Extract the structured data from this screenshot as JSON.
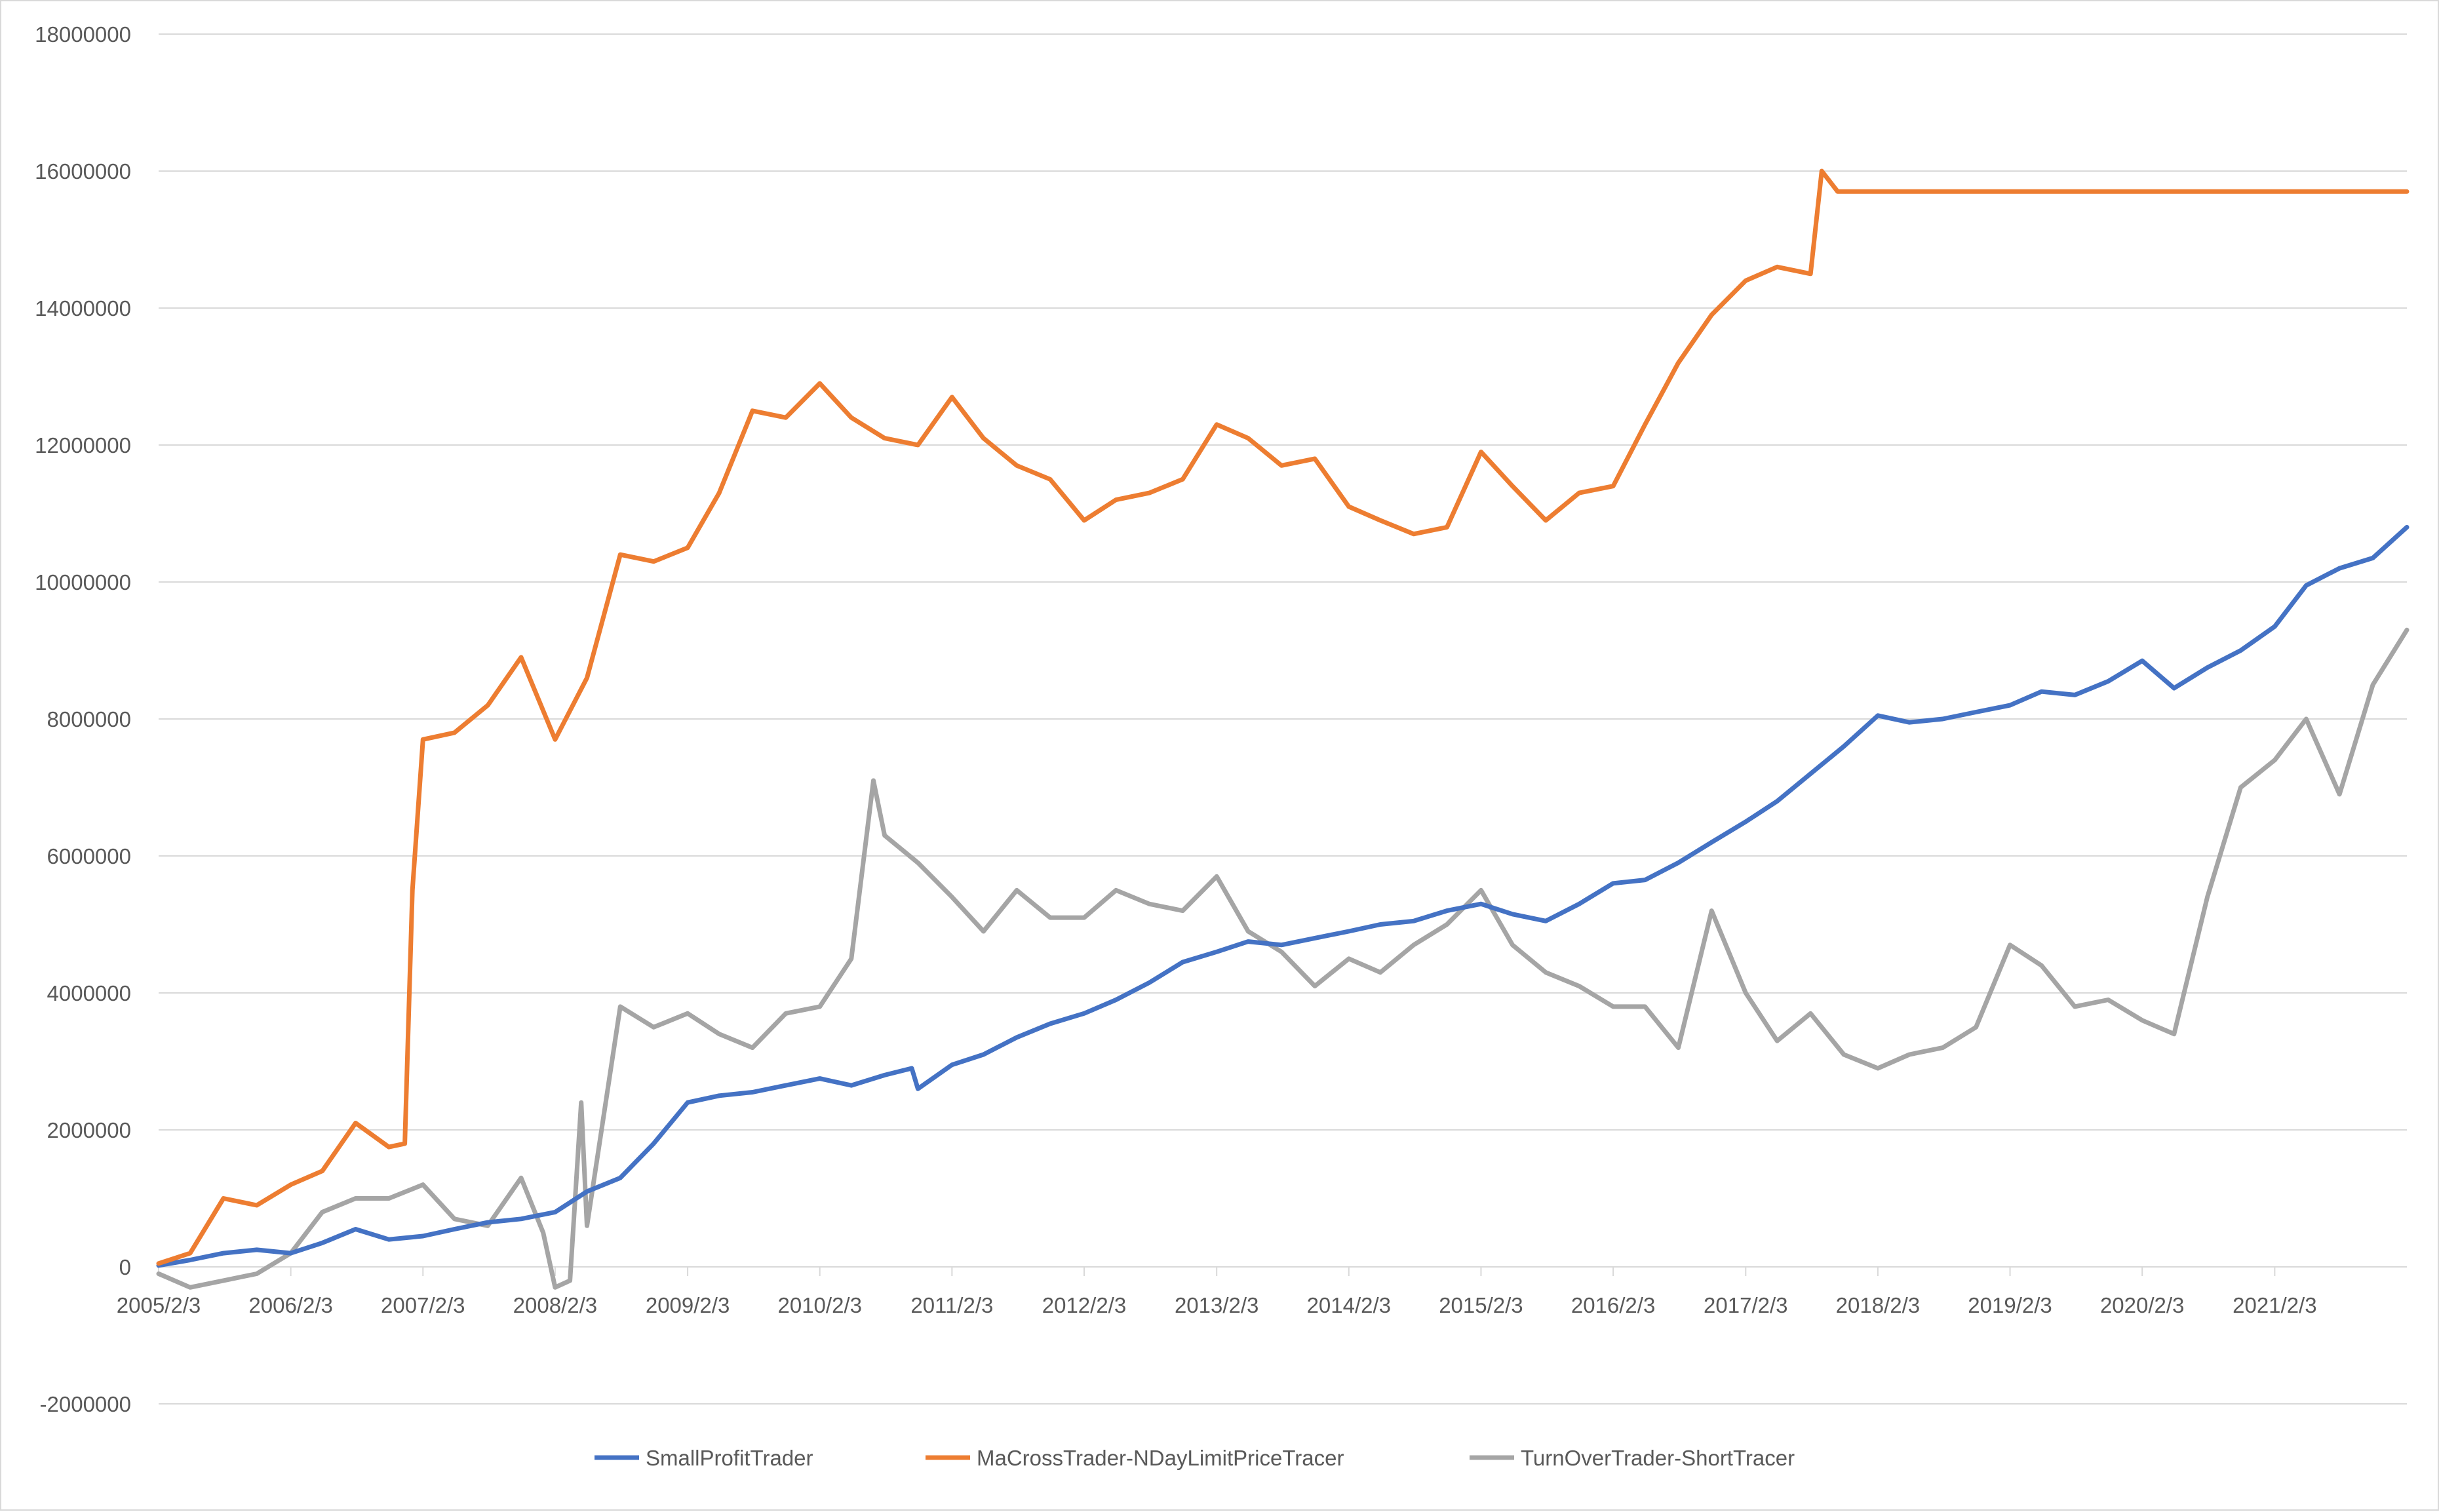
{
  "chart_data": {
    "type": "line",
    "title": "",
    "xlabel": "",
    "ylabel": "",
    "ylim": [
      -2000000,
      18000000
    ],
    "y_ticks": [
      "18000000",
      "16000000",
      "14000000",
      "12000000",
      "10000000",
      "8000000",
      "6000000",
      "4000000",
      "2000000",
      "0",
      "-2000000"
    ],
    "x_ticks": [
      "2005/2/3",
      "2006/2/3",
      "2007/2/3",
      "2008/2/3",
      "2009/2/3",
      "2010/2/3",
      "2011/2/3",
      "2012/2/3",
      "2013/2/3",
      "2014/2/3",
      "2015/2/3",
      "2016/2/3",
      "2017/2/3",
      "2018/2/3",
      "2019/2/3",
      "2020/2/3",
      "2021/2/3"
    ],
    "xlim": [
      "2005/2/3",
      "2022/2/3"
    ],
    "grid": "horizontal",
    "legend": "bottom",
    "series": [
      {
        "name": "SmallProfitTrader",
        "color": "#4472c4",
        "x": [
          "2005/2/3",
          "2005/5/1",
          "2005/8/1",
          "2005/11/1",
          "2006/2/3",
          "2006/5/1",
          "2006/8/1",
          "2006/11/1",
          "2007/2/3",
          "2007/5/1",
          "2007/8/1",
          "2007/11/1",
          "2008/2/3",
          "2008/5/1",
          "2008/8/1",
          "2008/11/1",
          "2009/2/3",
          "2009/5/1",
          "2009/8/1",
          "2009/11/1",
          "2010/2/3",
          "2010/5/1",
          "2010/8/1",
          "2010/10/15",
          "2010/11/1",
          "2011/2/3",
          "2011/5/1",
          "2011/8/1",
          "2011/11/1",
          "2012/2/3",
          "2012/5/1",
          "2012/8/1",
          "2012/11/1",
          "2013/2/3",
          "2013/5/1",
          "2013/8/1",
          "2013/11/1",
          "2014/2/3",
          "2014/5/1",
          "2014/8/1",
          "2014/11/1",
          "2015/2/3",
          "2015/5/1",
          "2015/8/1",
          "2015/11/1",
          "2016/2/3",
          "2016/5/1",
          "2016/8/1",
          "2016/11/1",
          "2017/2/3",
          "2017/5/1",
          "2017/8/1",
          "2017/11/1",
          "2018/2/3",
          "2018/5/1",
          "2018/8/1",
          "2018/11/1",
          "2019/2/3",
          "2019/5/1",
          "2019/8/1",
          "2019/11/1",
          "2020/2/3",
          "2020/5/1",
          "2020/8/1",
          "2020/11/1",
          "2021/2/3",
          "2021/5/1",
          "2021/8/1",
          "2021/11/1",
          "2022/2/3"
        ],
        "values": [
          20000,
          100000,
          200000,
          250000,
          200000,
          350000,
          550000,
          400000,
          450000,
          550000,
          650000,
          700000,
          800000,
          1100000,
          1300000,
          1800000,
          2400000,
          2500000,
          2550000,
          2650000,
          2750000,
          2650000,
          2800000,
          2900000,
          2600000,
          2950000,
          3100000,
          3350000,
          3550000,
          3700000,
          3900000,
          4150000,
          4450000,
          4600000,
          4750000,
          4700000,
          4800000,
          4900000,
          5000000,
          5050000,
          5200000,
          5300000,
          5150000,
          5050000,
          5300000,
          5600000,
          5650000,
          5900000,
          6200000,
          6500000,
          6800000,
          7200000,
          7600000,
          8050000,
          7950000,
          8000000,
          8100000,
          8200000,
          8400000,
          8350000,
          8550000,
          8850000,
          8450000,
          8750000,
          9000000,
          9350000,
          9950000,
          10200000,
          10350000,
          10800000
        ]
      },
      {
        "name": "MaCrossTrader-NDayLimitPriceTracer",
        "color": "#ed7d31",
        "x": [
          "2005/2/3",
          "2005/5/1",
          "2005/8/1",
          "2005/11/1",
          "2006/2/3",
          "2006/5/1",
          "2006/8/1",
          "2006/11/1",
          "2006/12/15",
          "2007/1/5",
          "2007/2/3",
          "2007/5/1",
          "2007/8/1",
          "2007/11/1",
          "2008/2/3",
          "2008/5/1",
          "2008/8/1",
          "2008/11/1",
          "2009/2/3",
          "2009/5/1",
          "2009/8/1",
          "2009/11/1",
          "2010/2/3",
          "2010/5/1",
          "2010/8/1",
          "2010/11/1",
          "2011/2/3",
          "2011/5/1",
          "2011/8/1",
          "2011/11/1",
          "2012/2/3",
          "2012/5/1",
          "2012/8/1",
          "2012/11/1",
          "2013/2/3",
          "2013/5/1",
          "2013/8/1",
          "2013/11/1",
          "2014/2/3",
          "2014/5/1",
          "2014/8/1",
          "2014/11/1",
          "2015/2/3",
          "2015/5/1",
          "2015/8/1",
          "2015/11/1",
          "2016/2/3",
          "2016/5/1",
          "2016/8/1",
          "2016/11/1",
          "2017/2/3",
          "2017/5/1",
          "2017/8/1",
          "2017/9/1",
          "2017/10/15",
          "2018/2/3",
          "2019/2/3",
          "2020/2/3",
          "2021/2/3",
          "2022/2/3"
        ],
        "values": [
          50000,
          200000,
          1000000,
          900000,
          1200000,
          1400000,
          2100000,
          1750000,
          1800000,
          5500000,
          7700000,
          7800000,
          8200000,
          8900000,
          7700000,
          8600000,
          10400000,
          10300000,
          10500000,
          11300000,
          12500000,
          12400000,
          12900000,
          12400000,
          12100000,
          12000000,
          12700000,
          12100000,
          11700000,
          11500000,
          10900000,
          11200000,
          11300000,
          11500000,
          12300000,
          12100000,
          11700000,
          11800000,
          11100000,
          10900000,
          10700000,
          10800000,
          11900000,
          11400000,
          10900000,
          11300000,
          11400000,
          12300000,
          13200000,
          13900000,
          14400000,
          14600000,
          14500000,
          16000000,
          15700000,
          15700000,
          15700000,
          15700000,
          15700000,
          15700000
        ]
      },
      {
        "name": "TurnOverTrader-ShortTracer",
        "color": "#a5a5a5",
        "x": [
          "2005/2/3",
          "2005/5/1",
          "2005/8/1",
          "2005/11/1",
          "2006/2/3",
          "2006/5/1",
          "2006/8/1",
          "2006/11/1",
          "2007/2/3",
          "2007/5/1",
          "2007/8/1",
          "2007/11/1",
          "2008/1/1",
          "2008/2/3",
          "2008/3/15",
          "2008/4/15",
          "2008/5/1",
          "2008/8/1",
          "2008/11/1",
          "2009/2/3",
          "2009/5/1",
          "2009/8/1",
          "2009/11/1",
          "2010/2/3",
          "2010/5/1",
          "2010/7/1",
          "2010/8/1",
          "2010/11/1",
          "2011/2/3",
          "2011/5/1",
          "2011/8/1",
          "2011/11/1",
          "2012/2/3",
          "2012/5/1",
          "2012/8/1",
          "2012/11/1",
          "2013/2/3",
          "2013/5/1",
          "2013/8/1",
          "2013/11/1",
          "2014/2/3",
          "2014/5/1",
          "2014/8/1",
          "2014/11/1",
          "2015/2/3",
          "2015/5/1",
          "2015/8/1",
          "2015/11/1",
          "2016/2/3",
          "2016/5/1",
          "2016/8/1",
          "2016/11/1",
          "2017/2/3",
          "2017/5/1",
          "2017/8/1",
          "2017/11/1",
          "2018/2/3",
          "2018/5/1",
          "2018/8/1",
          "2018/11/1",
          "2019/2/3",
          "2019/5/1",
          "2019/8/1",
          "2019/11/1",
          "2020/2/3",
          "2020/5/1",
          "2020/8/1",
          "2020/11/1",
          "2021/2/3",
          "2021/5/1",
          "2021/8/1",
          "2021/11/1",
          "2022/2/3"
        ],
        "values": [
          -100000,
          -300000,
          -200000,
          -100000,
          200000,
          800000,
          1000000,
          1000000,
          1200000,
          700000,
          600000,
          1300000,
          500000,
          -300000,
          -200000,
          2400000,
          600000,
          3800000,
          3500000,
          3700000,
          3400000,
          3200000,
          3700000,
          3800000,
          4500000,
          7100000,
          6300000,
          5900000,
          5400000,
          4900000,
          5500000,
          5100000,
          5100000,
          5500000,
          5300000,
          5200000,
          5700000,
          4900000,
          4600000,
          4100000,
          4500000,
          4300000,
          4700000,
          5000000,
          5500000,
          4700000,
          4300000,
          4100000,
          3800000,
          3800000,
          3200000,
          5200000,
          4000000,
          3300000,
          3700000,
          3100000,
          2900000,
          3100000,
          3200000,
          3500000,
          4700000,
          4400000,
          3800000,
          3900000,
          3600000,
          3400000,
          5400000,
          7000000,
          7400000,
          8000000,
          6900000,
          8500000,
          9300000
        ]
      }
    ]
  }
}
